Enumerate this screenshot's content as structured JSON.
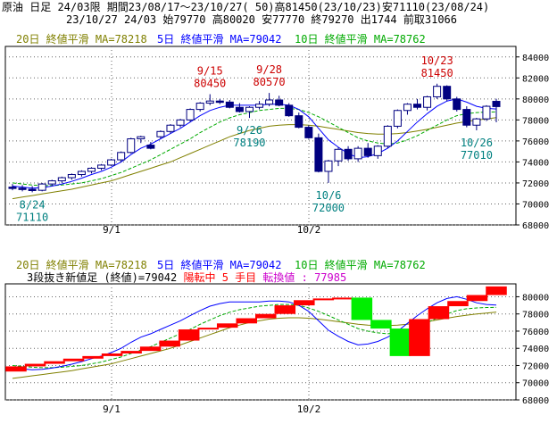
{
  "header": {
    "line1": "原油 日足 24/03限 期間23/08/17～23/10/27( 50)高81450(23/10/23)安71110(23/08/24)",
    "line2": "23/10/27 24/03 始79770 高80020 安77770 終79270 出1744 前取31066"
  },
  "colors": {
    "ma20": "#808000",
    "ma5": "#0000ff",
    "ma10": "#00aa00",
    "candle": "#000080",
    "annot_high": "#cc0000",
    "annot_low": "#008080",
    "reversal_up": "#ff0000",
    "reversal_down": "#00ee00",
    "switch_text": "#cc00cc"
  },
  "chart_data": [
    {
      "type": "candlestick",
      "legend": [
        "20日 終値平滑 MA=78218",
        "5日 終値平滑 MA=79042",
        "10日 終値平滑 MA=78762"
      ],
      "x_ticks": [
        "9/1",
        "10/2"
      ],
      "y_ticks": [
        68000,
        70000,
        72000,
        74000,
        76000,
        78000,
        80000,
        82000,
        84000
      ],
      "ylim": [
        68000,
        85000
      ],
      "grid": true,
      "annotations": [
        {
          "date": "8/24",
          "value": "71110",
          "kind": "low"
        },
        {
          "date": "9/15",
          "value": "80450",
          "kind": "high"
        },
        {
          "date": "9/26",
          "value": "78190",
          "kind": "low"
        },
        {
          "date": "9/28",
          "value": "80570",
          "kind": "high"
        },
        {
          "date": "10/6",
          "value": "72000",
          "kind": "low"
        },
        {
          "date": "10/23",
          "value": "81450",
          "kind": "high"
        },
        {
          "date": "10/26",
          "value": "77010",
          "kind": "low"
        }
      ],
      "ohlc": [
        [
          71600,
          71900,
          71300,
          71500
        ],
        [
          71500,
          71800,
          71200,
          71400
        ],
        [
          71400,
          71700,
          71110,
          71300
        ],
        [
          71300,
          72000,
          71200,
          71900
        ],
        [
          71900,
          72300,
          71700,
          72200
        ],
        [
          72200,
          72600,
          72000,
          72500
        ],
        [
          72500,
          72900,
          72300,
          72800
        ],
        [
          72800,
          73200,
          72600,
          73100
        ],
        [
          73100,
          73500,
          72900,
          73400
        ],
        [
          73400,
          73800,
          73200,
          73700
        ],
        [
          73700,
          74300,
          73600,
          74200
        ],
        [
          74200,
          75000,
          74000,
          74900
        ],
        [
          74900,
          76300,
          74800,
          76200
        ],
        [
          76200,
          76500,
          75800,
          76400
        ],
        [
          75600,
          75900,
          75200,
          75300
        ],
        [
          76400,
          77000,
          76200,
          76900
        ],
        [
          76900,
          77600,
          76700,
          77500
        ],
        [
          77500,
          78100,
          77300,
          78000
        ],
        [
          78000,
          79100,
          77800,
          79000
        ],
        [
          79000,
          79700,
          78800,
          79600
        ],
        [
          79600,
          80450,
          79400,
          79800
        ],
        [
          79800,
          80000,
          79500,
          79700
        ],
        [
          79700,
          79900,
          79100,
          79200
        ],
        [
          79200,
          79600,
          78700,
          78800
        ],
        [
          78800,
          79300,
          78190,
          79200
        ],
        [
          79200,
          79800,
          79000,
          79500
        ],
        [
          79500,
          80570,
          79300,
          79900
        ],
        [
          79900,
          80300,
          79300,
          79400
        ],
        [
          79400,
          79600,
          78300,
          78400
        ],
        [
          78400,
          78700,
          77200,
          77300
        ],
        [
          77300,
          77500,
          76200,
          76300
        ],
        [
          76300,
          76700,
          73000,
          73100
        ],
        [
          73100,
          74200,
          72000,
          74100
        ],
        [
          74100,
          75400,
          73600,
          75200
        ],
        [
          75200,
          75500,
          74100,
          74300
        ],
        [
          74300,
          75500,
          74000,
          75300
        ],
        [
          75300,
          75800,
          74400,
          74600
        ],
        [
          74600,
          75600,
          74300,
          75500
        ],
        [
          75500,
          77500,
          75300,
          77400
        ],
        [
          77400,
          79000,
          77200,
          78900
        ],
        [
          78900,
          79600,
          78500,
          79500
        ],
        [
          79500,
          80000,
          79000,
          79200
        ],
        [
          79200,
          80300,
          78900,
          80200
        ],
        [
          80200,
          81450,
          80000,
          81200
        ],
        [
          81200,
          81300,
          79800,
          80000
        ],
        [
          80000,
          80200,
          78800,
          79000
        ],
        [
          79000,
          79300,
          77300,
          77500
        ],
        [
          77500,
          78200,
          77010,
          78100
        ],
        [
          78100,
          79400,
          77900,
          79300
        ],
        [
          79770,
          80020,
          77770,
          79270
        ]
      ],
      "ma5": [
        71700,
        71600,
        71500,
        71550,
        71700,
        71900,
        72150,
        72450,
        72800,
        73100,
        73500,
        74000,
        74700,
        75300,
        75700,
        76200,
        76700,
        77200,
        77800,
        78400,
        78900,
        79200,
        79400,
        79400,
        79400,
        79400,
        79500,
        79500,
        79400,
        79000,
        78300,
        77200,
        76100,
        75400,
        74800,
        74400,
        74500,
        74800,
        75300,
        76000,
        76900,
        77800,
        78600,
        79300,
        79800,
        80000,
        79700,
        79300,
        79100,
        79042
      ],
      "ma10": [
        72000,
        71900,
        71800,
        71750,
        71750,
        71800,
        71900,
        72000,
        72200,
        72400,
        72700,
        73000,
        73400,
        73800,
        74200,
        74700,
        75200,
        75700,
        76200,
        76800,
        77300,
        77800,
        78200,
        78500,
        78700,
        78900,
        79000,
        79100,
        79100,
        79000,
        78700,
        78300,
        77800,
        77300,
        76800,
        76300,
        76000,
        75800,
        75700,
        75800,
        76100,
        76500,
        77000,
        77500,
        78000,
        78400,
        78600,
        78700,
        78750,
        78762
      ],
      "ma20": [
        70500,
        70650,
        70800,
        70950,
        71100,
        71250,
        71400,
        71600,
        71800,
        72000,
        72200,
        72500,
        72800,
        73100,
        73400,
        73700,
        74000,
        74400,
        74800,
        75200,
        75600,
        76000,
        76400,
        76700,
        77000,
        77200,
        77400,
        77500,
        77550,
        77550,
        77500,
        77400,
        77250,
        77100,
        76950,
        76800,
        76700,
        76650,
        76650,
        76700,
        76800,
        76950,
        77100,
        77300,
        77500,
        77700,
        77850,
        78000,
        78100,
        78218
      ]
    },
    {
      "type": "three-line-break",
      "legend": [
        "20日 終値平滑 MA=78218",
        "5日 終値平滑 MA=79042",
        "10日 終値平滑 MA=78762"
      ],
      "status": "3段抜き新値足 (終値)=79042 陽転中  5 手目 転換値 : 77985",
      "x_ticks": [
        "9/1",
        "10/2"
      ],
      "y_ticks": [
        68000,
        70000,
        72000,
        74000,
        76000,
        78000,
        80000
      ],
      "ylim": [
        68000,
        81500
      ],
      "grid": true,
      "line_break": [
        [
          "up",
          71300,
          71900
        ],
        [
          "up",
          71900,
          72200
        ],
        [
          "up",
          72200,
          72500
        ],
        [
          "up",
          72500,
          72800
        ],
        [
          "up",
          72800,
          73100
        ],
        [
          "up",
          73100,
          73400
        ],
        [
          "up",
          73400,
          73700
        ],
        [
          "up",
          73700,
          74200
        ],
        [
          "up",
          74200,
          74900
        ],
        [
          "up",
          74900,
          76200
        ],
        [
          "up",
          76200,
          76400
        ],
        [
          "up",
          76400,
          76900
        ],
        [
          "up",
          76900,
          77500
        ],
        [
          "up",
          77500,
          78000
        ],
        [
          "up",
          78000,
          79000
        ],
        [
          "up",
          79000,
          79600
        ],
        [
          "up",
          79600,
          79800
        ],
        [
          "up",
          79800,
          79900
        ],
        [
          "down",
          79900,
          77300
        ],
        [
          "down",
          77300,
          76300
        ],
        [
          "down",
          76300,
          73100
        ],
        [
          "up",
          73100,
          77400
        ],
        [
          "up",
          77400,
          78900
        ],
        [
          "up",
          78900,
          79500
        ],
        [
          "up",
          79500,
          80200
        ],
        [
          "up",
          80200,
          81200
        ]
      ]
    }
  ]
}
